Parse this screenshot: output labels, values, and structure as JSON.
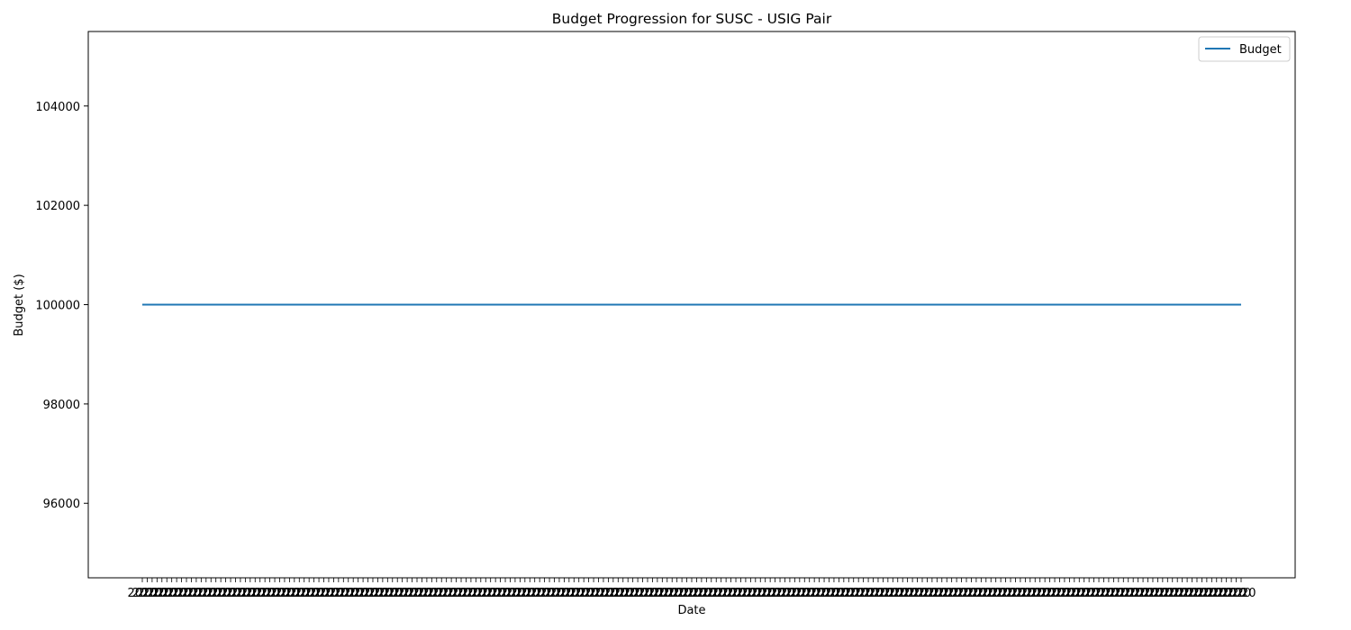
{
  "chart_data": {
    "type": "line",
    "title": "Budget Progression for SUSC - USIG Pair",
    "xlabel": "Date",
    "ylabel": "Budget ($)",
    "x_tick_count": 225,
    "x_tick_labels_note": "overlapping illegible date labels",
    "yticks": [
      96000,
      98000,
      100000,
      102000,
      104000
    ],
    "ylim": [
      94500,
      105500
    ],
    "series": [
      {
        "name": "Budget",
        "color": "#1f77b4",
        "start_value": 100000,
        "end_value": 100000,
        "values": [
          100000,
          100000
        ]
      }
    ],
    "legend": {
      "position": "upper right",
      "entries": [
        "Budget"
      ]
    },
    "grid": false
  }
}
